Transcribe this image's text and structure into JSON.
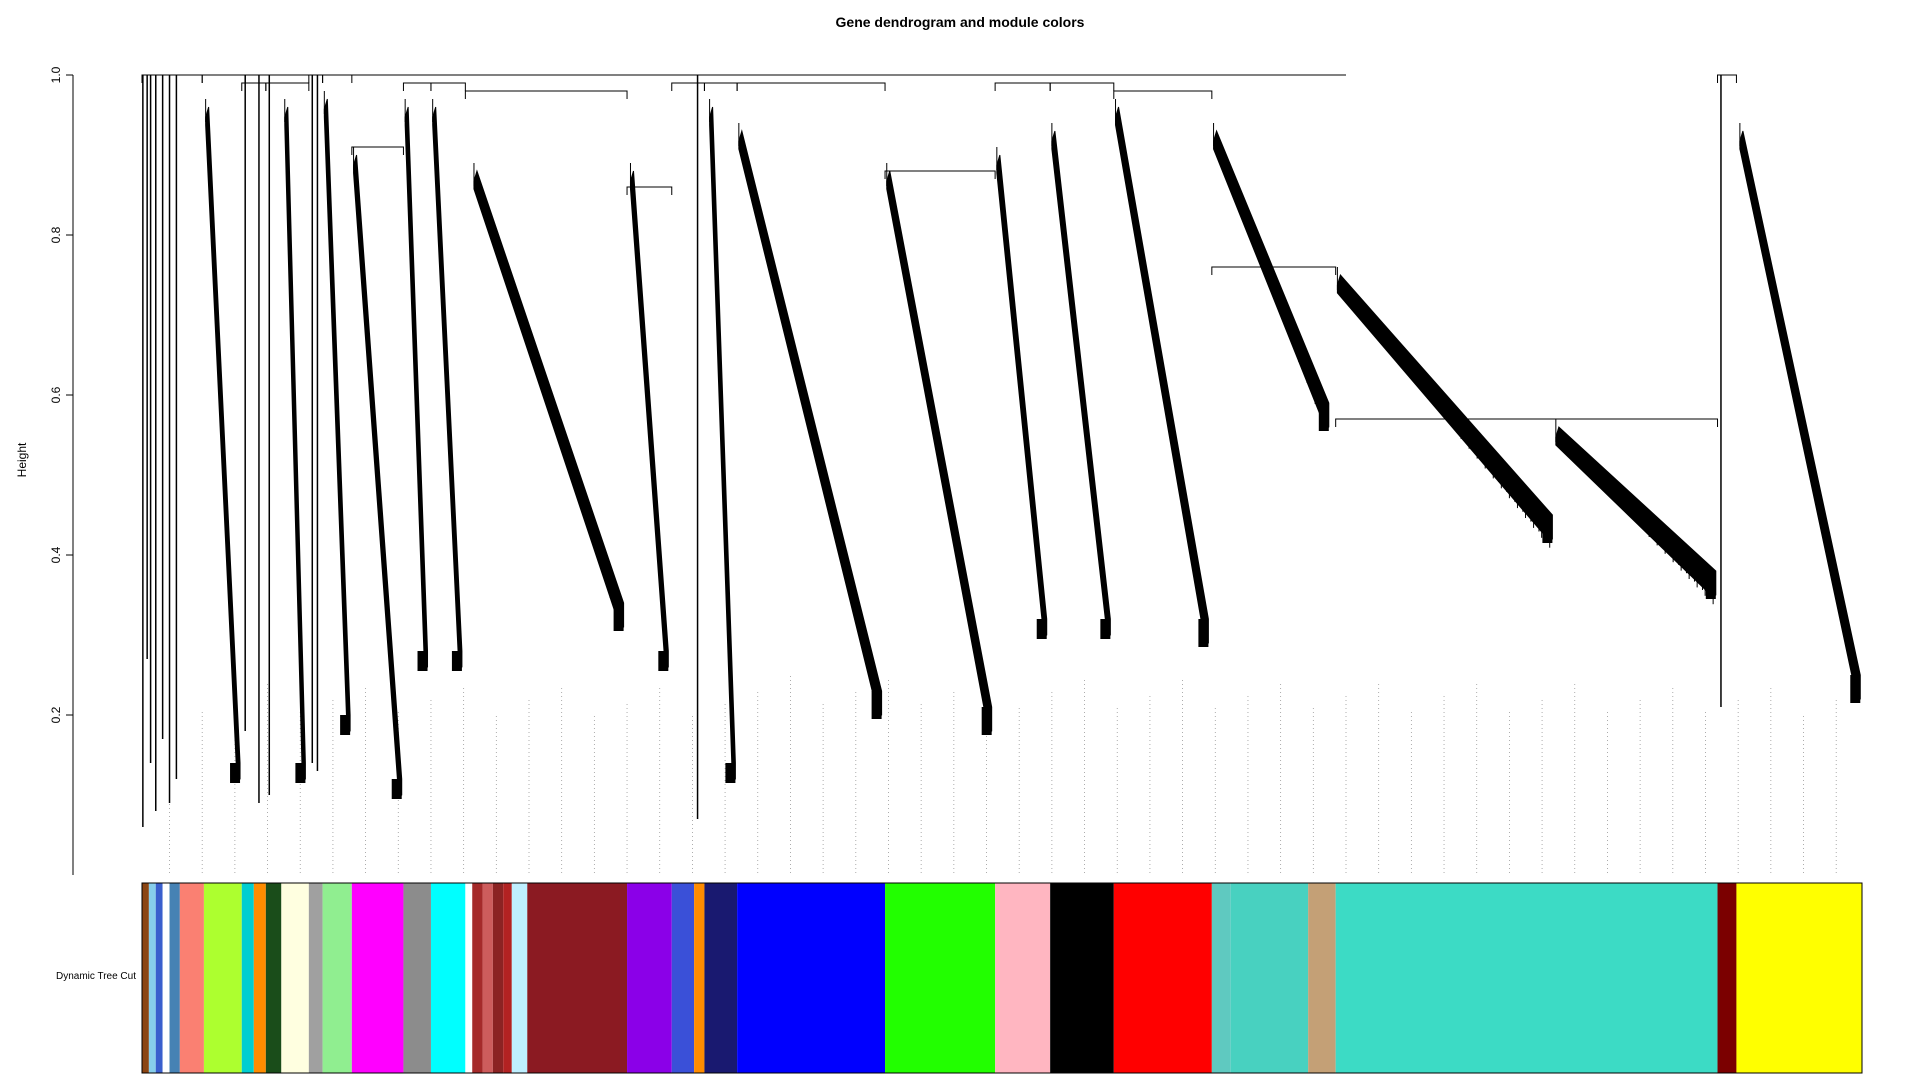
{
  "chart_data": {
    "type": "dendrogram",
    "title": "Gene dendrogram and module colors",
    "ylabel": "Height",
    "ylim": [
      0.0,
      1.0
    ],
    "y_ticks": [
      0.2,
      0.4,
      0.6,
      0.8,
      1.0
    ],
    "y_tick_labels": [
      "0.2",
      "0.4",
      "0.6",
      "0.8",
      "1.0"
    ],
    "colorbar_label": "Dynamic Tree Cut",
    "x_range": [
      0,
      1000
    ],
    "module_segments": [
      {
        "x0": 0,
        "x1": 4,
        "color": "#8B4513"
      },
      {
        "x0": 4,
        "x1": 8,
        "color": "#87CEEB"
      },
      {
        "x0": 8,
        "x1": 12,
        "color": "#3A5FCD"
      },
      {
        "x0": 12,
        "x1": 16,
        "color": "#ffffff"
      },
      {
        "x0": 16,
        "x1": 22,
        "color": "#4682B4"
      },
      {
        "x0": 22,
        "x1": 36,
        "color": "#FA8072"
      },
      {
        "x0": 36,
        "x1": 58,
        "color": "#ADFF2F"
      },
      {
        "x0": 58,
        "x1": 65,
        "color": "#00CED1"
      },
      {
        "x0": 65,
        "x1": 72,
        "color": "#FF8C00"
      },
      {
        "x0": 72,
        "x1": 81,
        "color": "#1A4D1A"
      },
      {
        "x0": 81,
        "x1": 97,
        "color": "#FFFFE0"
      },
      {
        "x0": 97,
        "x1": 105,
        "color": "#A0A0A0"
      },
      {
        "x0": 105,
        "x1": 122,
        "color": "#90EE90"
      },
      {
        "x0": 122,
        "x1": 152,
        "color": "#FF00FF"
      },
      {
        "x0": 152,
        "x1": 168,
        "color": "#8C8C8C"
      },
      {
        "x0": 168,
        "x1": 188,
        "color": "#00FFFF"
      },
      {
        "x0": 188,
        "x1": 192,
        "color": "#ffffff"
      },
      {
        "x0": 192,
        "x1": 198,
        "color": "#A52A2A"
      },
      {
        "x0": 198,
        "x1": 204,
        "color": "#CD5C5C"
      },
      {
        "x0": 204,
        "x1": 210,
        "color": "#8B2323"
      },
      {
        "x0": 210,
        "x1": 215,
        "color": "#B22222"
      },
      {
        "x0": 215,
        "x1": 224,
        "color": "#BFEFFF"
      },
      {
        "x0": 224,
        "x1": 282,
        "color": "#8B1A22"
      },
      {
        "x0": 282,
        "x1": 308,
        "color": "#8B00E8"
      },
      {
        "x0": 308,
        "x1": 321,
        "color": "#3A50D8"
      },
      {
        "x0": 321,
        "x1": 327,
        "color": "#FF8C00"
      },
      {
        "x0": 327,
        "x1": 346,
        "color": "#191970"
      },
      {
        "x0": 346,
        "x1": 432,
        "color": "#0000FF"
      },
      {
        "x0": 432,
        "x1": 496,
        "color": "#22FF00"
      },
      {
        "x0": 496,
        "x1": 528,
        "color": "#FFB6C1"
      },
      {
        "x0": 528,
        "x1": 565,
        "color": "#000000"
      },
      {
        "x0": 565,
        "x1": 622,
        "color": "#FF0000"
      },
      {
        "x0": 622,
        "x1": 633,
        "color": "#5FC9C0"
      },
      {
        "x0": 633,
        "x1": 678,
        "color": "#48D1C0"
      },
      {
        "x0": 678,
        "x1": 694,
        "color": "#C4A076"
      },
      {
        "x0": 694,
        "x1": 916,
        "color": "#3CDBC5"
      },
      {
        "x0": 916,
        "x1": 927,
        "color": "#7B0000"
      },
      {
        "x0": 927,
        "x1": 1000,
        "color": "#FFFF00"
      }
    ],
    "clusters": [
      {
        "x0": 37,
        "x1": 57,
        "top": 0.96,
        "bottom": 0.12,
        "gap": 0.02
      },
      {
        "x0": 83,
        "x1": 95,
        "top": 0.96,
        "bottom": 0.12,
        "gap": 0.02
      },
      {
        "x0": 106,
        "x1": 121,
        "top": 0.97,
        "bottom": 0.18,
        "gap": 0.02
      },
      {
        "x0": 123,
        "x1": 151,
        "top": 0.9,
        "bottom": 0.1,
        "gap": 0.02
      },
      {
        "x0": 153,
        "x1": 166,
        "top": 0.96,
        "bottom": 0.26,
        "gap": 0.02
      },
      {
        "x0": 169,
        "x1": 186,
        "top": 0.96,
        "bottom": 0.26,
        "gap": 0.02
      },
      {
        "x0": 193,
        "x1": 280,
        "top": 0.88,
        "bottom": 0.31,
        "gap": 0.03
      },
      {
        "x0": 284,
        "x1": 306,
        "top": 0.88,
        "bottom": 0.26,
        "gap": 0.02
      },
      {
        "x0": 330,
        "x1": 345,
        "top": 0.96,
        "bottom": 0.12,
        "gap": 0.02
      },
      {
        "x0": 347,
        "x1": 430,
        "top": 0.93,
        "bottom": 0.2,
        "gap": 0.03
      },
      {
        "x0": 433,
        "x1": 494,
        "top": 0.88,
        "bottom": 0.18,
        "gap": 0.03
      },
      {
        "x0": 497,
        "x1": 526,
        "top": 0.9,
        "bottom": 0.3,
        "gap": 0.02
      },
      {
        "x0": 529,
        "x1": 563,
        "top": 0.93,
        "bottom": 0.3,
        "gap": 0.02
      },
      {
        "x0": 566,
        "x1": 620,
        "top": 0.96,
        "bottom": 0.29,
        "gap": 0.03
      },
      {
        "x0": 623,
        "x1": 690,
        "top": 0.93,
        "bottom": 0.56,
        "gap": 0.03
      },
      {
        "x0": 695,
        "x1": 820,
        "top": 0.75,
        "bottom": 0.42,
        "gap": 0.03
      },
      {
        "x0": 822,
        "x1": 915,
        "top": 0.56,
        "bottom": 0.35,
        "gap": 0.03
      },
      {
        "x0": 929,
        "x1": 999,
        "top": 0.93,
        "bottom": 0.22,
        "gap": 0.03
      }
    ],
    "small_spikes": [
      {
        "x": 0.5,
        "bottom": 0.06
      },
      {
        "x": 3,
        "bottom": 0.27
      },
      {
        "x": 5,
        "bottom": 0.14
      },
      {
        "x": 8,
        "bottom": 0.08
      },
      {
        "x": 12,
        "bottom": 0.17
      },
      {
        "x": 16,
        "bottom": 0.09
      },
      {
        "x": 20,
        "bottom": 0.12
      },
      {
        "x": 60,
        "bottom": 0.18
      },
      {
        "x": 68,
        "bottom": 0.09
      },
      {
        "x": 74,
        "bottom": 0.1
      },
      {
        "x": 99,
        "bottom": 0.14
      },
      {
        "x": 102,
        "bottom": 0.13
      },
      {
        "x": 323,
        "bottom": 0.07
      },
      {
        "x": 918,
        "bottom": 0.21
      }
    ],
    "merges": [
      {
        "xl": 0,
        "xr": 16,
        "h": 1.0
      },
      {
        "xl": 16,
        "xr": 35,
        "h": 1.0
      },
      {
        "xl": 35,
        "xr": 60,
        "h": 1.0
      },
      {
        "xl": 58,
        "xr": 72,
        "h": 0.99
      },
      {
        "xl": 72,
        "xr": 97,
        "h": 0.99
      },
      {
        "xl": 97,
        "xr": 105,
        "h": 1.0
      },
      {
        "xl": 105,
        "xr": 122,
        "h": 1.0
      },
      {
        "xl": 122,
        "xr": 152,
        "h": 0.91
      },
      {
        "xl": 152,
        "xr": 168,
        "h": 0.99
      },
      {
        "xl": 168,
        "xr": 188,
        "h": 0.99
      },
      {
        "xl": 188,
        "xr": 282,
        "h": 0.98
      },
      {
        "xl": 282,
        "xr": 308,
        "h": 0.86
      },
      {
        "xl": 308,
        "xr": 327,
        "h": 0.99
      },
      {
        "xl": 327,
        "xr": 346,
        "h": 0.99
      },
      {
        "xl": 346,
        "xr": 432,
        "h": 0.99
      },
      {
        "xl": 432,
        "xr": 496,
        "h": 0.88
      },
      {
        "xl": 496,
        "xr": 528,
        "h": 0.99
      },
      {
        "xl": 528,
        "xr": 565,
        "h": 0.99
      },
      {
        "xl": 565,
        "xr": 622,
        "h": 0.98
      },
      {
        "xl": 622,
        "xr": 694,
        "h": 0.76
      },
      {
        "xl": 694,
        "xr": 916,
        "h": 0.57
      },
      {
        "xl": 916,
        "xr": 927,
        "h": 1.0
      }
    ]
  }
}
